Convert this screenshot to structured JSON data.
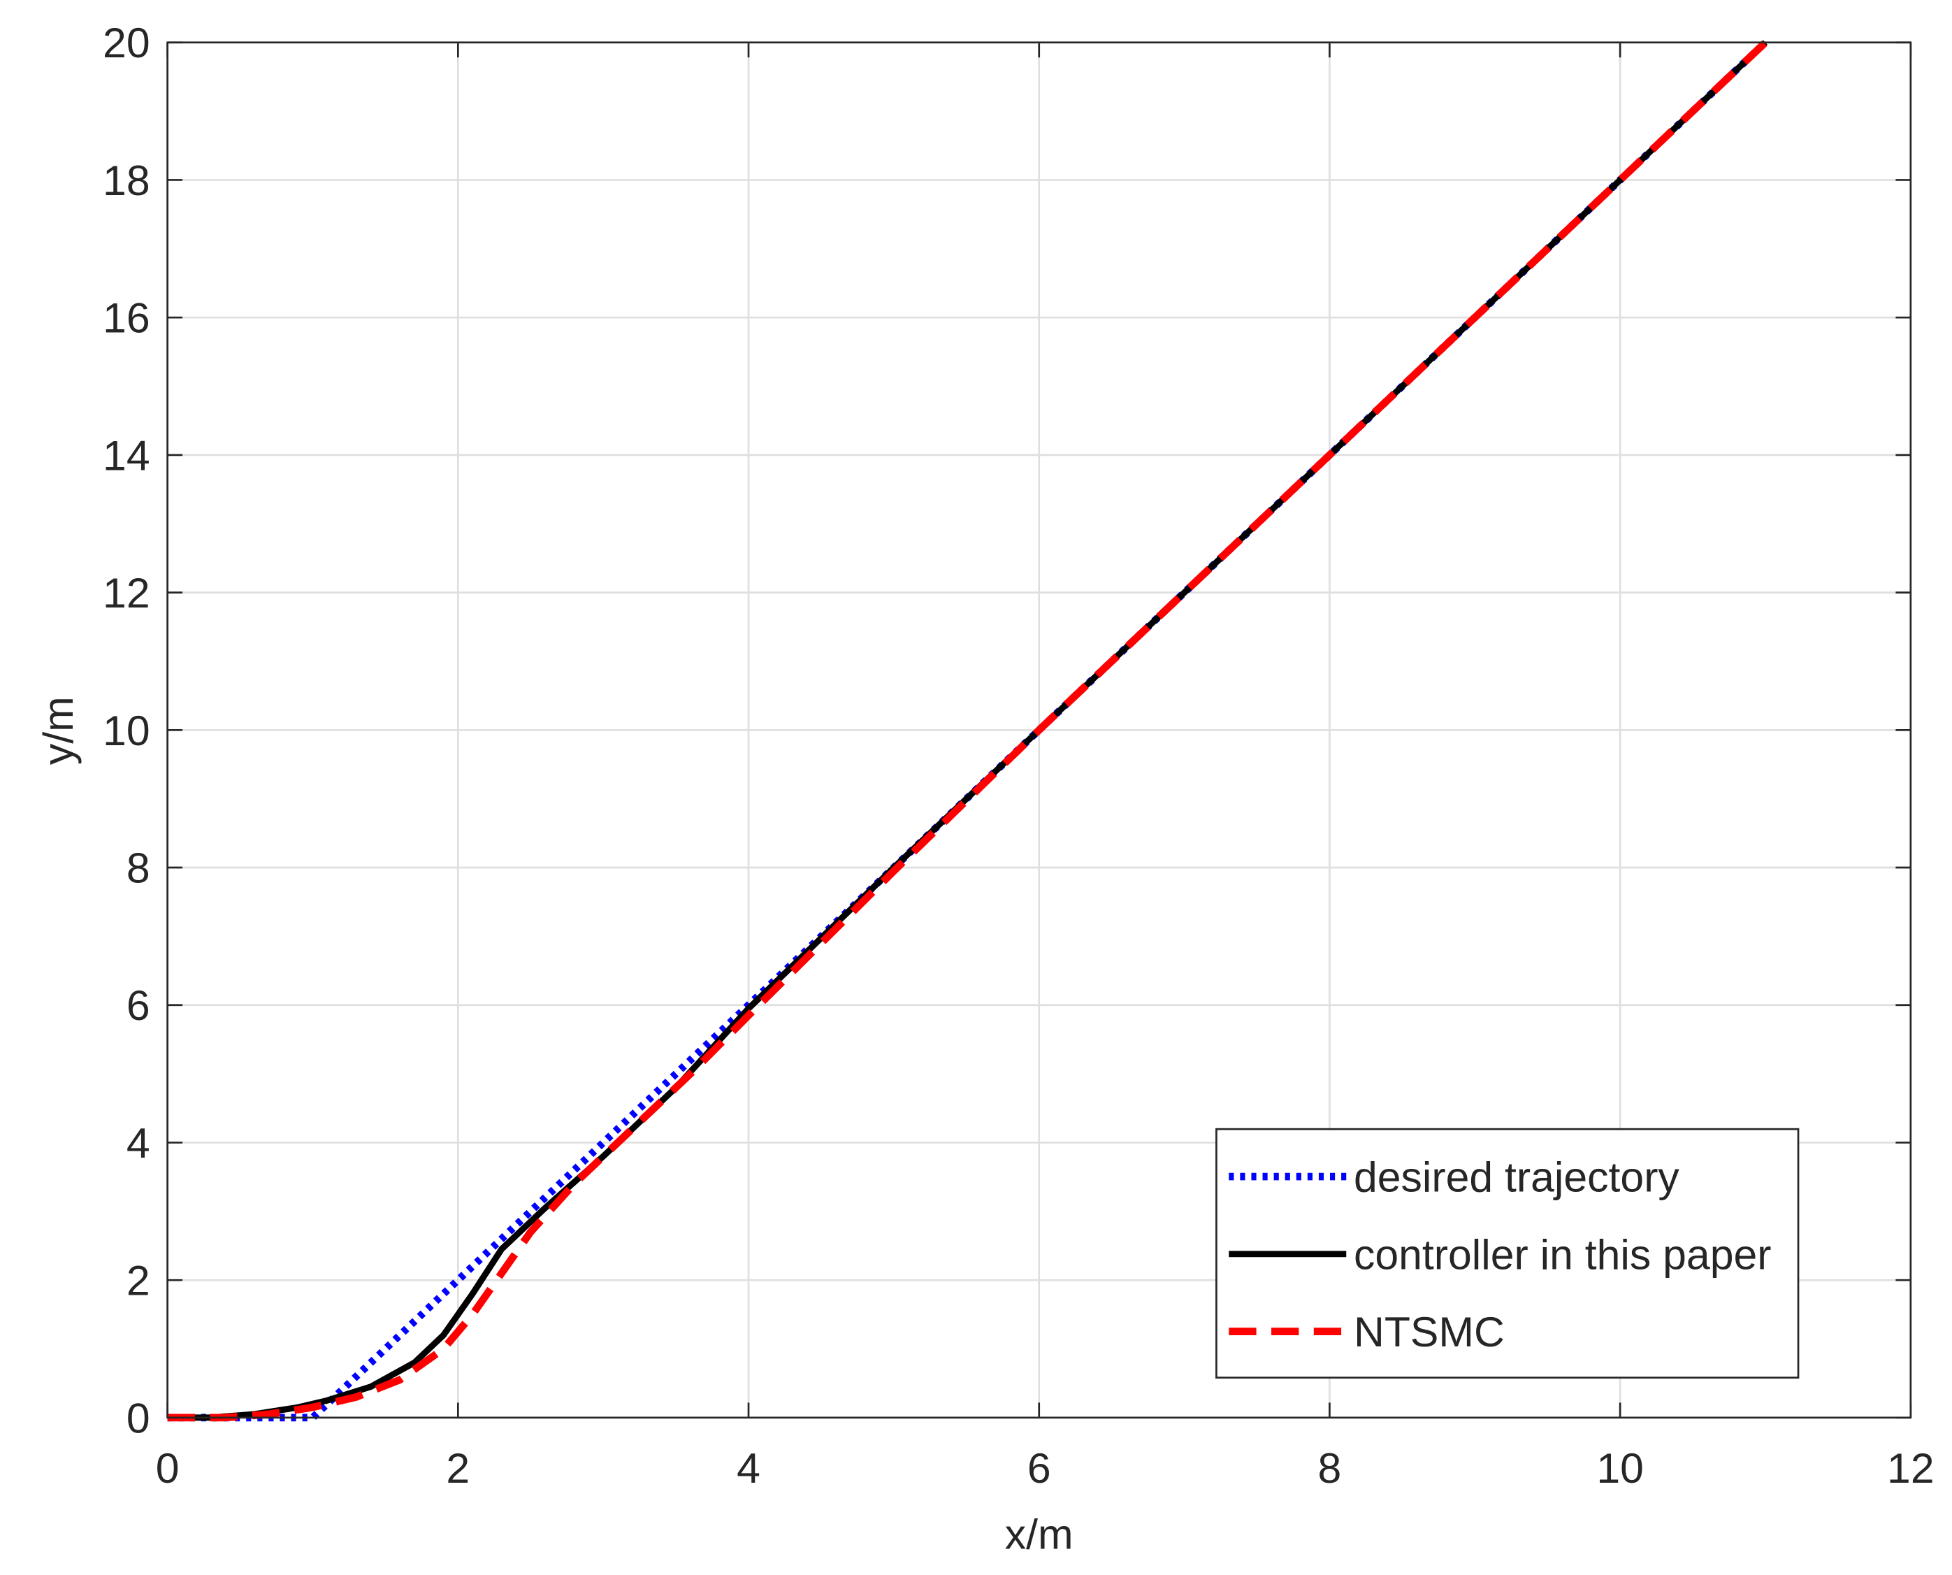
{
  "chart_data": {
    "type": "line",
    "xlabel": "x/m",
    "ylabel": "y/m",
    "xlim": [
      0,
      12
    ],
    "ylim": [
      0,
      20
    ],
    "xticks": [
      0,
      2,
      4,
      6,
      8,
      10,
      12
    ],
    "yticks": [
      0,
      2,
      4,
      6,
      8,
      10,
      12,
      14,
      16,
      18,
      20
    ],
    "grid": true,
    "legend_position": "lower right",
    "series": [
      {
        "name": "desired trajectory",
        "color": "#0000ff",
        "style": "dotted",
        "x": [
          0,
          1,
          11
        ],
        "values": [
          0,
          0,
          20
        ]
      },
      {
        "name": "controller in this paper",
        "color": "#000000",
        "style": "solid",
        "x": [
          0,
          0.3,
          0.6,
          0.9,
          1.1,
          1.4,
          1.7,
          1.9,
          2.1,
          2.3,
          2.6,
          3,
          3.5,
          4,
          5,
          6,
          11
        ],
        "values": [
          0,
          0,
          0.05,
          0.15,
          0.25,
          0.45,
          0.8,
          1.2,
          1.8,
          2.45,
          3.05,
          3.8,
          4.8,
          5.95,
          8,
          10,
          20
        ]
      },
      {
        "name": "NTSMC",
        "color": "#ff0000",
        "style": "dashed",
        "x": [
          0,
          0.4,
          0.7,
          1,
          1.3,
          1.6,
          1.9,
          2.1,
          2.3,
          2.5,
          2.8,
          3.2,
          3.6,
          4,
          5,
          6,
          11
        ],
        "values": [
          0,
          0,
          0.05,
          0.15,
          0.3,
          0.55,
          1,
          1.5,
          2.1,
          2.7,
          3.4,
          4.2,
          5,
          5.85,
          7.95,
          10,
          20
        ]
      }
    ]
  }
}
